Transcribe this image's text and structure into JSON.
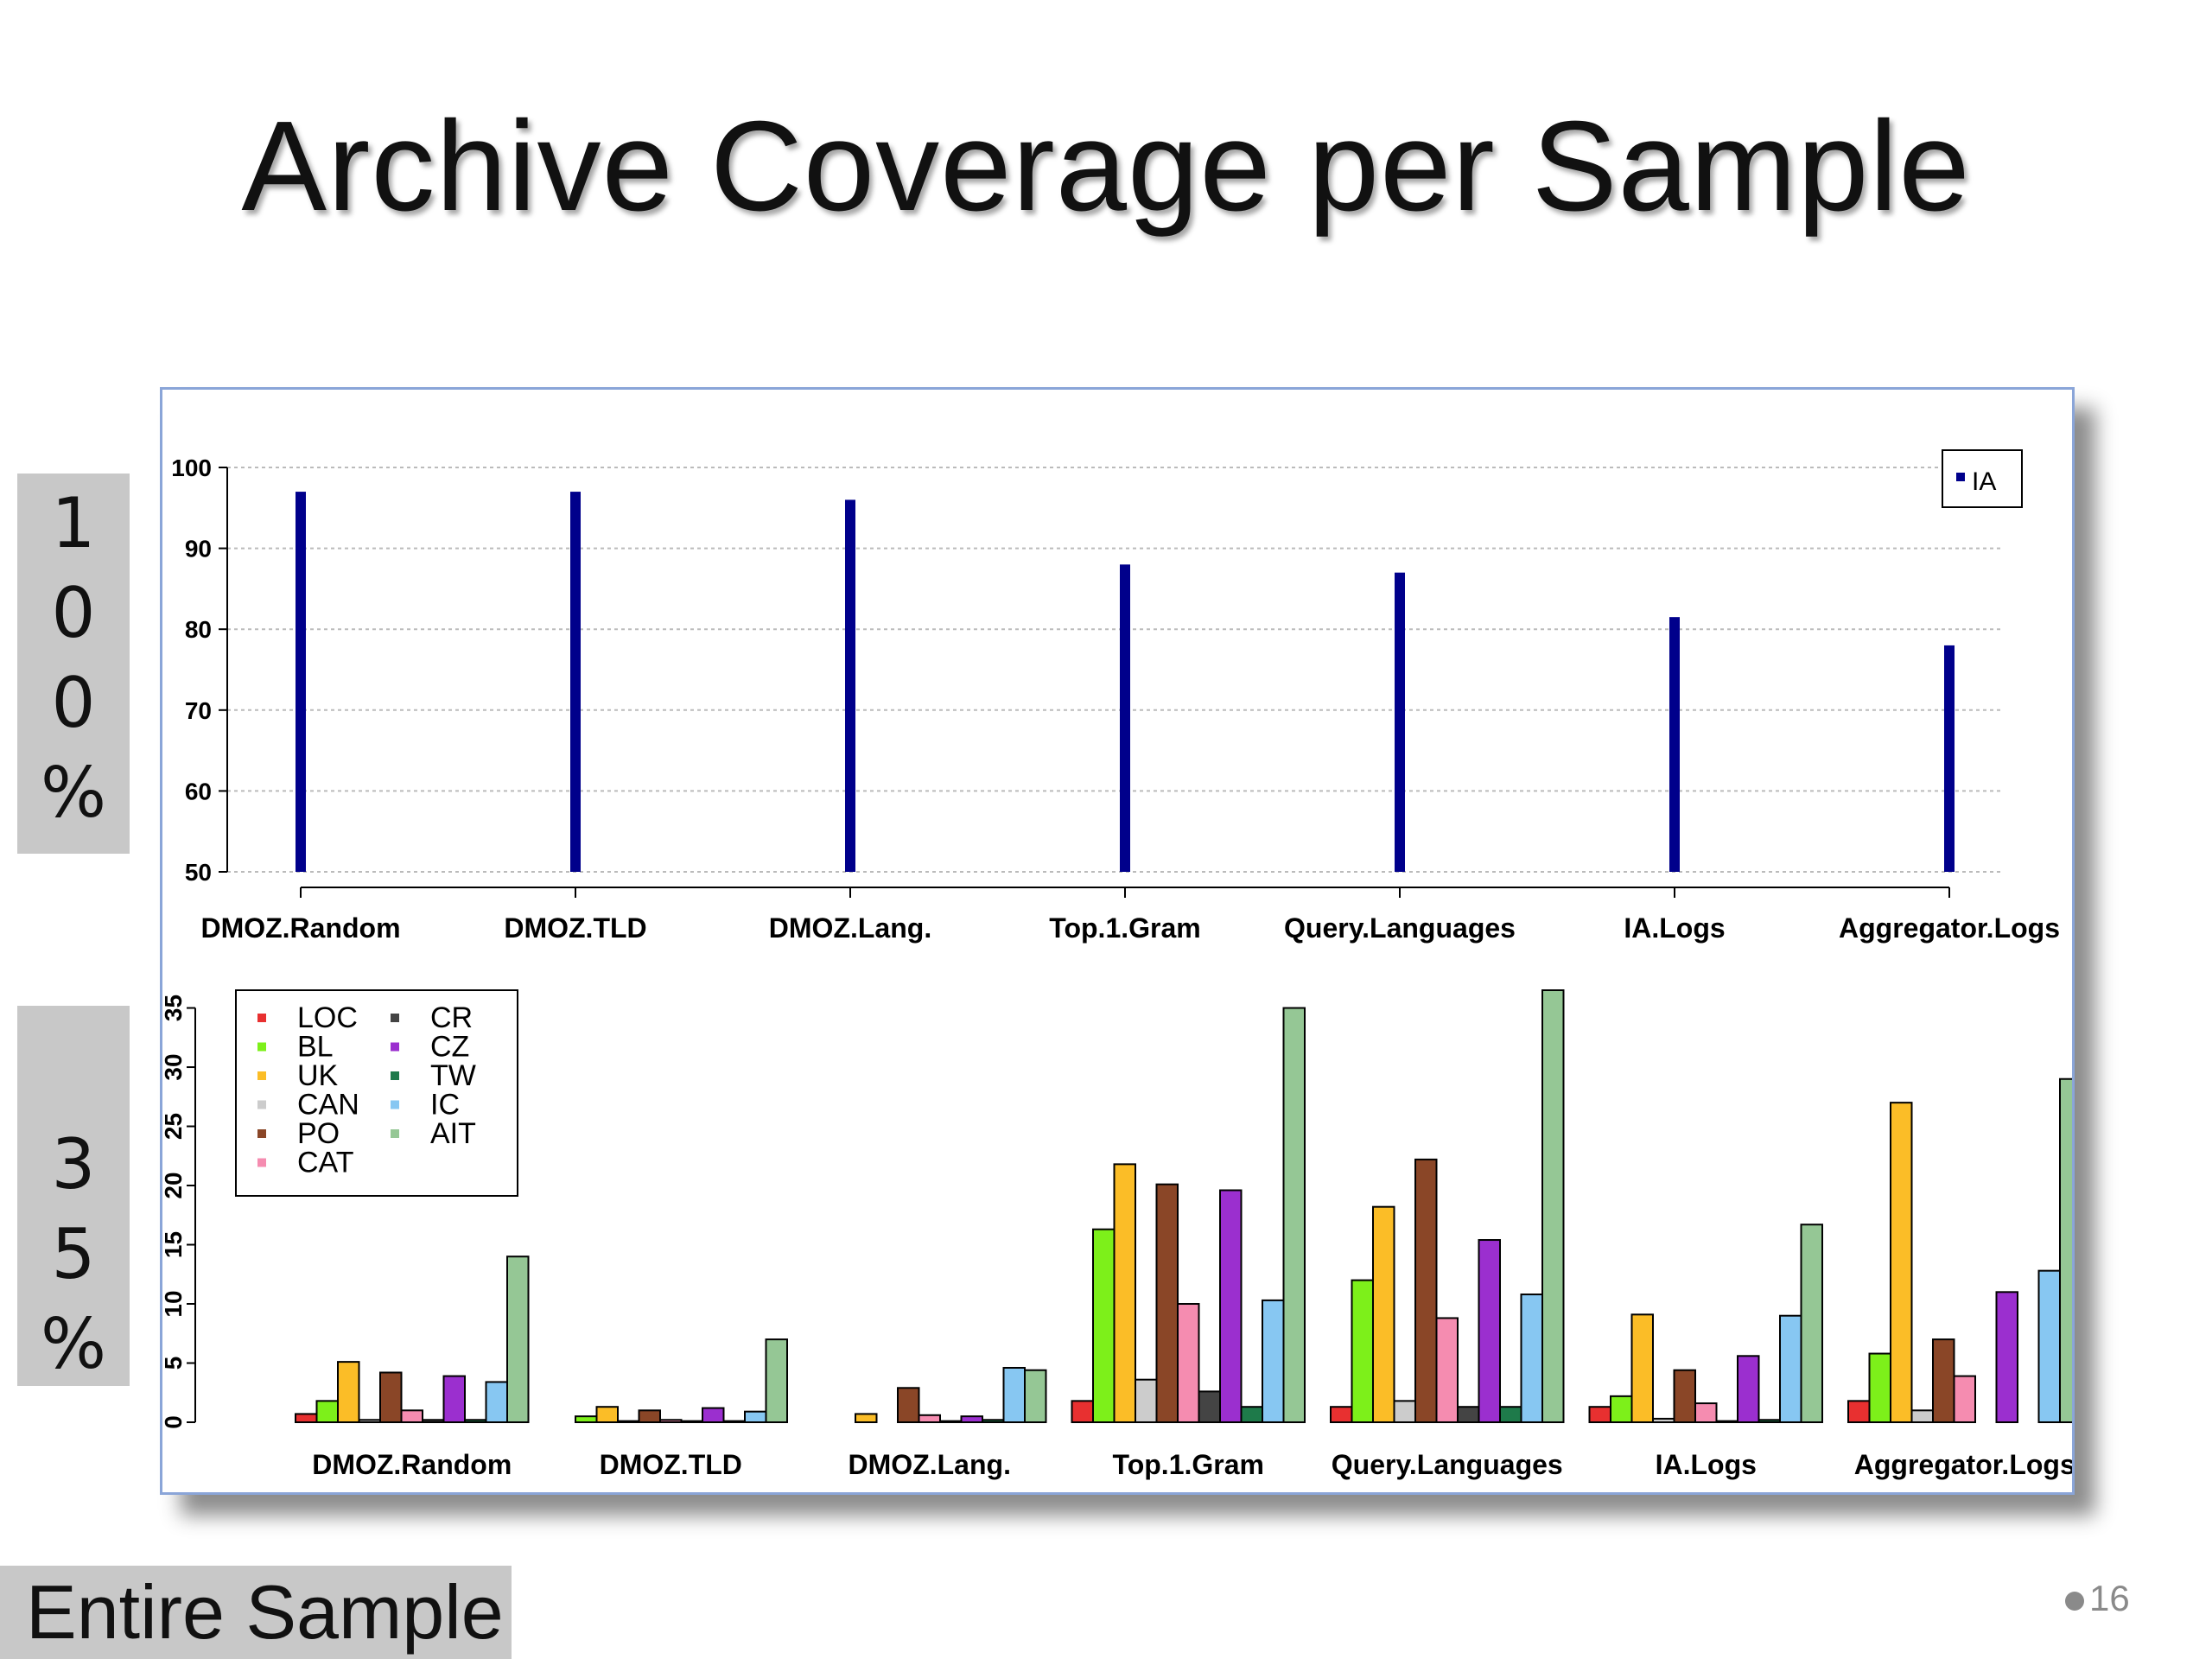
{
  "slide": {
    "title": "Archive Coverage per Sample",
    "side_label_top": [
      "1",
      "0",
      "0",
      "%"
    ],
    "side_label_bottom": [
      "3",
      "5",
      "%"
    ],
    "footer_label": "Entire Sample",
    "page_number": "16"
  },
  "chart_data": [
    {
      "type": "bar",
      "categories": [
        "DMOZ.Random",
        "DMOZ.TLD",
        "DMOZ.Lang.",
        "Top.1.Gram",
        "Query.Languages",
        "IA.Logs",
        "Aggregator.Logs"
      ],
      "series": [
        {
          "name": "IA",
          "color": "#00008b",
          "values": [
            97,
            97,
            96,
            88,
            87,
            81.5,
            78
          ]
        }
      ],
      "ylim": [
        50,
        100
      ],
      "yticks": [
        50,
        60,
        70,
        80,
        90,
        100
      ],
      "grid": true,
      "legend": "top-right"
    },
    {
      "type": "bar",
      "categories": [
        "DMOZ.Random",
        "DMOZ.TLD",
        "DMOZ.Lang.",
        "Top.1.Gram",
        "Query.Languages",
        "IA.Logs",
        "Aggregator.Logs"
      ],
      "series": [
        {
          "name": "LOC",
          "color": "#e83030",
          "values": [
            0.7,
            0,
            0,
            1.8,
            1.3,
            1.3,
            1.8
          ]
        },
        {
          "name": "BL",
          "color": "#7df01a",
          "values": [
            1.8,
            0.5,
            0,
            16.3,
            12,
            2.2,
            5.8
          ]
        },
        {
          "name": "UK",
          "color": "#fbbd27",
          "values": [
            5.1,
            1.3,
            0.7,
            21.8,
            18.2,
            9.1,
            27
          ]
        },
        {
          "name": "CAN",
          "color": "#cccccc",
          "values": [
            0.2,
            0.1,
            0,
            3.6,
            1.8,
            0.3,
            1
          ]
        },
        {
          "name": "PO",
          "color": "#8a4627",
          "values": [
            4.2,
            1,
            2.9,
            20.1,
            22.2,
            4.4,
            7
          ]
        },
        {
          "name": "CAT",
          "color": "#f58cb0",
          "values": [
            1,
            0.2,
            0.6,
            10,
            8.8,
            1.6,
            3.9
          ]
        },
        {
          "name": "CR",
          "color": "#444444",
          "values": [
            0.2,
            0.1,
            0.1,
            2.6,
            1.3,
            0.1,
            0
          ]
        },
        {
          "name": "CZ",
          "color": "#9b2fcf",
          "values": [
            3.9,
            1.2,
            0.5,
            19.6,
            15.4,
            5.6,
            11
          ]
        },
        {
          "name": "TW",
          "color": "#1e7a4a",
          "values": [
            0.2,
            0.1,
            0.2,
            1.3,
            1.3,
            0.2,
            0
          ]
        },
        {
          "name": "IC",
          "color": "#87c7f2",
          "values": [
            3.4,
            0.9,
            4.6,
            10.3,
            10.8,
            9,
            12.8
          ]
        },
        {
          "name": "AIT",
          "color": "#95c795",
          "values": [
            14,
            7,
            4.4,
            35,
            36.5,
            16.7,
            29
          ]
        }
      ],
      "ylim": [
        0,
        36.5
      ],
      "yticks": [
        0,
        5,
        10,
        15,
        20,
        25,
        30,
        35
      ],
      "grid": false,
      "legend": "top-left"
    }
  ]
}
